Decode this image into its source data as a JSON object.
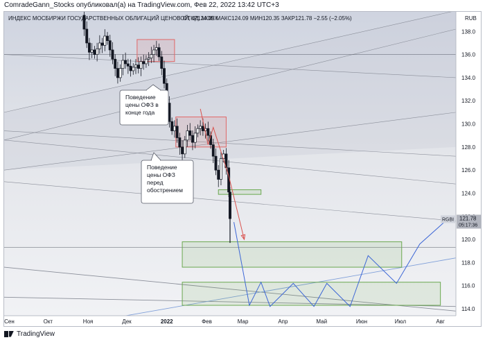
{
  "header": {
    "publisher_line": "ComradeGann_Stocks опубликовал(а) на TradingView.com, Фев 22, 2022 13:42 UTC+3"
  },
  "footer": {
    "brand": "TradingView",
    "logo_icon": "tradingview-logo-icon"
  },
  "chart_data": {
    "type": "candlestick",
    "title": "ИНДЕКС МОСБИРЖИ ГОСУДАРСТВЕННЫХ ОБЛИГАЦИЙ ЦЕНОВОЙ, 1Д, MOEX",
    "ohlc_text": "ОТКР124.09  МАКС124.09  МИН120.35  ЗАКР121.78  −2.55 (−2.05%)",
    "currency": "RUB",
    "symbol_tag": "RGBI",
    "last_price": "121.78",
    "countdown": "05:17:36",
    "ylim": [
      113.4,
      139.7
    ],
    "y_ticks": [
      114,
      116,
      118,
      120,
      122,
      124,
      126,
      128,
      130,
      132,
      134,
      136,
      138
    ],
    "x_ticks": [
      {
        "day": 0,
        "label": "Сен"
      },
      {
        "day": 30,
        "label": "Окт"
      },
      {
        "day": 61,
        "label": "Ноя"
      },
      {
        "day": 91,
        "label": "Дек"
      },
      {
        "day": 122,
        "label": "2022"
      },
      {
        "day": 153,
        "label": "Фев"
      },
      {
        "day": 181,
        "label": "Мар"
      },
      {
        "day": 212,
        "label": "Апр"
      },
      {
        "day": 242,
        "label": "Май"
      },
      {
        "day": 273,
        "label": "Июн"
      },
      {
        "day": 303,
        "label": "Июл"
      },
      {
        "day": 334,
        "label": "Авг"
      }
    ],
    "price_path": [
      [
        55,
        139.4
      ],
      [
        58,
        138.2
      ],
      [
        60,
        137.0
      ],
      [
        62,
        136.2
      ],
      [
        64,
        136.4
      ],
      [
        66,
        136.0
      ],
      [
        68,
        136.5
      ],
      [
        70,
        137.0
      ],
      [
        72,
        136.8
      ],
      [
        74,
        137.6
      ],
      [
        76,
        137.2
      ],
      [
        78,
        136.4
      ],
      [
        80,
        135.6
      ],
      [
        82,
        134.8
      ],
      [
        84,
        134.0
      ],
      [
        86,
        134.8
      ],
      [
        88,
        135.5
      ],
      [
        90,
        135.2
      ],
      [
        92,
        135.0
      ],
      [
        94,
        134.6
      ],
      [
        96,
        134.9
      ],
      [
        98,
        135.1
      ],
      [
        100,
        134.8
      ],
      [
        102,
        135.4
      ],
      [
        104,
        135.2
      ],
      [
        106,
        135.6
      ],
      [
        108,
        135.7
      ],
      [
        110,
        136.0
      ],
      [
        112,
        136.4
      ],
      [
        114,
        136.6
      ],
      [
        116,
        135.8
      ],
      [
        118,
        134.8
      ],
      [
        120,
        133.5
      ],
      [
        122,
        131.8
      ],
      [
        124,
        130.2
      ],
      [
        126,
        129.4
      ],
      [
        128,
        129.8
      ],
      [
        130,
        128.8
      ],
      [
        132,
        128.0
      ],
      [
        134,
        127.4
      ],
      [
        136,
        128.6
      ],
      [
        138,
        129.4
      ],
      [
        140,
        129.0
      ],
      [
        142,
        128.4
      ],
      [
        144,
        129.2
      ],
      [
        146,
        129.6
      ],
      [
        148,
        129.8
      ],
      [
        150,
        129.4
      ],
      [
        152,
        129.6
      ],
      [
        154,
        129.0
      ],
      [
        156,
        128.2
      ],
      [
        158,
        127.2
      ],
      [
        160,
        126.0
      ],
      [
        162,
        125.2
      ],
      [
        164,
        127.0
      ],
      [
        166,
        127.4
      ],
      [
        168,
        126.2
      ],
      [
        170,
        124.1
      ],
      [
        171,
        121.8
      ]
    ],
    "annotations": [
      {
        "text": "Поведение цены ОФЗ в конце года",
        "lines": [
          "Поведение",
          "цены ОФЗ в",
          "конце года"
        ]
      },
      {
        "text": "Поведение цены ОФЗ перед обострением",
        "lines": [
          "Поведение",
          "цены ОФЗ",
          "перед",
          "обострением"
        ]
      }
    ],
    "zones": [
      {
        "color": "red",
        "x": [
          99,
          128
        ],
        "y": [
          135.4,
          137.3
        ]
      },
      {
        "color": "red",
        "x": [
          129,
          168
        ],
        "y": [
          128.0,
          130.6
        ]
      },
      {
        "color": "green",
        "x": [
          162,
          195
        ],
        "y": [
          123.9,
          124.3
        ]
      },
      {
        "color": "green",
        "x": [
          134,
          304
        ],
        "y": [
          117.6,
          119.8
        ]
      },
      {
        "color": "green",
        "x": [
          134,
          334
        ],
        "y": [
          114.3,
          116.3
        ]
      }
    ],
    "projection_red": [
      [
        148,
        131.3
      ],
      [
        154,
        128.2
      ],
      [
        158,
        129.7
      ],
      [
        170,
        125.5
      ],
      [
        182,
        120.0
      ]
    ],
    "projection_blue": [
      [
        174,
        121.5
      ],
      [
        186,
        114.3
      ],
      [
        195,
        116.3
      ],
      [
        202,
        114.2
      ],
      [
        220,
        116.2
      ],
      [
        236,
        114.2
      ],
      [
        246,
        116.2
      ],
      [
        264,
        114.2
      ],
      [
        278,
        118.6
      ],
      [
        300,
        116.2
      ],
      [
        318,
        119.6
      ],
      [
        342,
        122.0
      ]
    ],
    "colors": {
      "up": "#131722",
      "down": "#131722",
      "red_zone": "#e06666",
      "green_zone": "#6aa84f",
      "projection_red": "#d9534f",
      "projection_blue": "#3c66d6",
      "price_label": "#b2b5be"
    }
  }
}
